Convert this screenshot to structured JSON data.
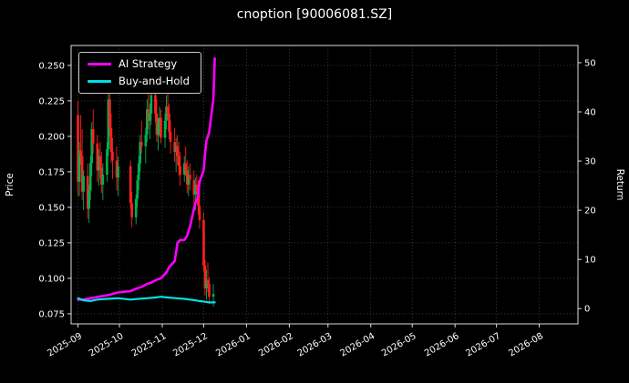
{
  "chart_data": {
    "type": "candlestick",
    "title": "cnoption [90006081.SZ]",
    "ylabel_left": "Price",
    "ylabel_right": "Return",
    "x_domain": [
      "2025-08-27",
      "2026-08-29"
    ],
    "price_lim": [
      0.0679,
      0.264
    ],
    "return_lim": [
      -3.1,
      53.5
    ],
    "price_ticks": [
      0.075,
      0.1,
      0.125,
      0.15,
      0.175,
      0.2,
      0.225,
      0.25
    ],
    "return_ticks": [
      0,
      10,
      20,
      30,
      40,
      50
    ],
    "x_ticks": [
      "2025-09",
      "2025-10",
      "2025-11",
      "2025-12",
      "2026-01",
      "2026-02",
      "2026-03",
      "2026-04",
      "2026-05",
      "2026-06",
      "2026-07",
      "2026-08"
    ],
    "grid": true,
    "legend_position": "upper-left",
    "colors": {
      "up": "#00b050",
      "down": "#ff2020",
      "background": "#000000",
      "text": "#ffffff",
      "grid": "#8a8a8a",
      "spine": "#dcdcdc"
    },
    "series": [
      {
        "name": "AI Strategy",
        "color": "#ff00ff",
        "width": 2.6,
        "axis": "price",
        "points": [
          [
            "2025-09-01",
            0.085
          ],
          [
            "2025-09-05",
            0.085
          ],
          [
            "2025-09-10",
            0.086
          ],
          [
            "2025-09-16",
            0.087
          ],
          [
            "2025-09-22",
            0.088
          ],
          [
            "2025-09-26",
            0.089
          ],
          [
            "2025-09-30",
            0.09
          ],
          [
            "2025-10-09",
            0.091
          ],
          [
            "2025-10-14",
            0.093
          ],
          [
            "2025-10-17",
            0.094
          ],
          [
            "2025-10-21",
            0.096
          ],
          [
            "2025-10-24",
            0.097
          ],
          [
            "2025-10-28",
            0.099
          ],
          [
            "2025-10-31",
            0.1
          ],
          [
            "2025-11-04",
            0.104
          ],
          [
            "2025-11-06",
            0.108
          ],
          [
            "2025-11-10",
            0.112
          ],
          [
            "2025-11-11",
            0.118
          ],
          [
            "2025-11-12",
            0.125
          ],
          [
            "2025-11-14",
            0.127
          ],
          [
            "2025-11-17",
            0.127
          ],
          [
            "2025-11-19",
            0.13
          ],
          [
            "2025-11-20",
            0.133
          ],
          [
            "2025-11-21",
            0.136
          ],
          [
            "2025-11-24",
            0.149
          ],
          [
            "2025-11-25",
            0.153
          ],
          [
            "2025-11-26",
            0.155
          ],
          [
            "2025-11-27",
            0.158
          ],
          [
            "2025-11-28",
            0.168
          ],
          [
            "2025-12-01",
            0.176
          ],
          [
            "2025-12-02",
            0.188
          ],
          [
            "2025-12-03",
            0.197
          ],
          [
            "2025-12-04",
            0.2
          ],
          [
            "2025-12-05",
            0.203
          ],
          [
            "2025-12-08",
            0.226
          ],
          [
            "2025-12-09",
            0.255
          ]
        ]
      },
      {
        "name": "Buy-and-Hold",
        "color": "#00e0e8",
        "width": 2.2,
        "axis": "price",
        "points": [
          [
            "2025-09-01",
            0.086
          ],
          [
            "2025-09-05",
            0.0845
          ],
          [
            "2025-09-10",
            0.084
          ],
          [
            "2025-09-15",
            0.085
          ],
          [
            "2025-09-22",
            0.0855
          ],
          [
            "2025-09-30",
            0.086
          ],
          [
            "2025-10-09",
            0.085
          ],
          [
            "2025-10-15",
            0.0855
          ],
          [
            "2025-10-21",
            0.086
          ],
          [
            "2025-10-27",
            0.0865
          ],
          [
            "2025-10-31",
            0.087
          ],
          [
            "2025-11-05",
            0.0865
          ],
          [
            "2025-11-11",
            0.086
          ],
          [
            "2025-11-17",
            0.0855
          ],
          [
            "2025-11-21",
            0.085
          ],
          [
            "2025-11-25",
            0.0845
          ],
          [
            "2025-11-28",
            0.084
          ],
          [
            "2025-12-02",
            0.0835
          ],
          [
            "2025-12-05",
            0.083
          ],
          [
            "2025-12-09",
            0.083
          ]
        ]
      }
    ],
    "candles": [
      [
        "2025-09-01",
        0.215,
        0.225,
        0.158,
        0.168
      ],
      [
        "2025-09-02",
        0.168,
        0.196,
        0.158,
        0.19
      ],
      [
        "2025-09-03",
        0.19,
        0.215,
        0.18,
        0.186
      ],
      [
        "2025-09-04",
        0.186,
        0.205,
        0.155,
        0.161
      ],
      [
        "2025-09-05",
        0.161,
        0.176,
        0.148,
        0.172
      ],
      [
        "2025-09-08",
        0.172,
        0.181,
        0.142,
        0.149
      ],
      [
        "2025-09-09",
        0.149,
        0.166,
        0.139,
        0.162
      ],
      [
        "2025-09-10",
        0.162,
        0.186,
        0.155,
        0.181
      ],
      [
        "2025-09-11",
        0.181,
        0.21,
        0.172,
        0.205
      ],
      [
        "2025-09-12",
        0.205,
        0.219,
        0.188,
        0.195
      ],
      [
        "2025-09-15",
        0.195,
        0.201,
        0.168,
        0.176
      ],
      [
        "2025-09-16",
        0.176,
        0.191,
        0.165,
        0.186
      ],
      [
        "2025-09-17",
        0.186,
        0.196,
        0.17,
        0.178
      ],
      [
        "2025-09-18",
        0.178,
        0.189,
        0.16,
        0.166
      ],
      [
        "2025-09-19",
        0.166,
        0.181,
        0.155,
        0.173
      ],
      [
        "2025-09-22",
        0.173,
        0.196,
        0.168,
        0.191
      ],
      [
        "2025-09-23",
        0.191,
        0.235,
        0.186,
        0.226
      ],
      [
        "2025-09-24",
        0.226,
        0.233,
        0.2,
        0.206
      ],
      [
        "2025-09-25",
        0.206,
        0.216,
        0.181,
        0.189
      ],
      [
        "2025-09-26",
        0.189,
        0.199,
        0.17,
        0.183
      ],
      [
        "2025-09-29",
        0.183,
        0.193,
        0.162,
        0.171
      ],
      [
        "2025-09-30",
        0.171,
        0.186,
        0.158,
        0.179
      ],
      [
        "2025-10-09",
        0.179,
        0.183,
        0.149,
        0.153
      ],
      [
        "2025-10-10",
        0.153,
        0.161,
        0.136,
        0.143
      ],
      [
        "2025-10-13",
        0.143,
        0.159,
        0.138,
        0.156
      ],
      [
        "2025-10-14",
        0.156,
        0.173,
        0.15,
        0.169
      ],
      [
        "2025-10-15",
        0.169,
        0.186,
        0.162,
        0.181
      ],
      [
        "2025-10-16",
        0.181,
        0.201,
        0.175,
        0.196
      ],
      [
        "2025-10-17",
        0.196,
        0.211,
        0.188,
        0.193
      ],
      [
        "2025-10-20",
        0.193,
        0.206,
        0.181,
        0.201
      ],
      [
        "2025-10-21",
        0.201,
        0.226,
        0.196,
        0.219
      ],
      [
        "2025-10-22",
        0.219,
        0.231,
        0.205,
        0.211
      ],
      [
        "2025-10-23",
        0.211,
        0.223,
        0.198,
        0.216
      ],
      [
        "2025-10-24",
        0.216,
        0.235,
        0.208,
        0.229
      ],
      [
        "2025-10-27",
        0.229,
        0.233,
        0.21,
        0.216
      ],
      [
        "2025-10-28",
        0.216,
        0.226,
        0.196,
        0.201
      ],
      [
        "2025-10-29",
        0.201,
        0.213,
        0.19,
        0.209
      ],
      [
        "2025-10-30",
        0.209,
        0.221,
        0.2,
        0.213
      ],
      [
        "2025-10-31",
        0.213,
        0.219,
        0.195,
        0.199
      ],
      [
        "2025-11-03",
        0.199,
        0.216,
        0.192,
        0.211
      ],
      [
        "2025-11-04",
        0.211,
        0.229,
        0.205,
        0.221
      ],
      [
        "2025-11-05",
        0.221,
        0.236,
        0.212,
        0.216
      ],
      [
        "2025-11-06",
        0.216,
        0.223,
        0.198,
        0.203
      ],
      [
        "2025-11-07",
        0.203,
        0.211,
        0.188,
        0.196
      ],
      [
        "2025-11-10",
        0.196,
        0.206,
        0.182,
        0.189
      ],
      [
        "2025-11-11",
        0.189,
        0.199,
        0.175,
        0.193
      ],
      [
        "2025-11-12",
        0.193,
        0.201,
        0.18,
        0.186
      ],
      [
        "2025-11-13",
        0.186,
        0.196,
        0.172,
        0.179
      ],
      [
        "2025-11-14",
        0.179,
        0.189,
        0.165,
        0.173
      ],
      [
        "2025-11-17",
        0.173,
        0.186,
        0.168,
        0.181
      ],
      [
        "2025-11-18",
        0.181,
        0.193,
        0.172,
        0.176
      ],
      [
        "2025-11-19",
        0.176,
        0.183,
        0.16,
        0.166
      ],
      [
        "2025-11-20",
        0.166,
        0.179,
        0.158,
        0.173
      ],
      [
        "2025-11-21",
        0.173,
        0.181,
        0.162,
        0.169
      ],
      [
        "2025-11-24",
        0.169,
        0.176,
        0.152,
        0.159
      ],
      [
        "2025-11-25",
        0.159,
        0.171,
        0.148,
        0.166
      ],
      [
        "2025-11-26",
        0.166,
        0.173,
        0.155,
        0.161
      ],
      [
        "2025-11-27",
        0.161,
        0.169,
        0.145,
        0.151
      ],
      [
        "2025-11-28",
        0.151,
        0.159,
        0.135,
        0.141
      ],
      [
        "2025-12-01",
        0.141,
        0.146,
        0.105,
        0.109
      ],
      [
        "2025-12-02",
        0.109,
        0.113,
        0.088,
        0.093
      ],
      [
        "2025-12-03",
        0.093,
        0.106,
        0.085,
        0.099
      ],
      [
        "2025-12-04",
        0.099,
        0.111,
        0.09,
        0.096
      ],
      [
        "2025-12-05",
        0.096,
        0.101,
        0.082,
        0.087
      ],
      [
        "2025-12-08",
        0.087,
        0.096,
        0.08,
        0.089
      ]
    ]
  }
}
